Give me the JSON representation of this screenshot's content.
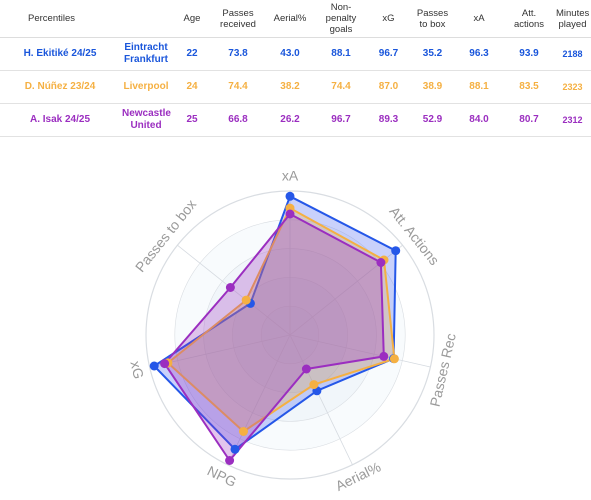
{
  "table": {
    "columns": [
      "Percentiles",
      "Age",
      "Passes received",
      "Aerial%",
      "Non-penalty goals",
      "xG",
      "Passes to box",
      "xA",
      "Att. actions",
      "Minutes played"
    ],
    "remove_label": "x",
    "rows": [
      {
        "player": "H. Ekitiké 24/25",
        "team": "Eintracht Frankfurt",
        "color": "#1a56db",
        "values": [
          "22",
          "73.8",
          "43.0",
          "88.1",
          "96.7",
          "35.2",
          "96.3",
          "93.9",
          "2188"
        ]
      },
      {
        "player": "D. Núñez 23/24",
        "team": "Liverpool",
        "color": "#f5b042",
        "values": [
          "24",
          "74.4",
          "38.2",
          "74.4",
          "87.0",
          "38.9",
          "88.1",
          "83.5",
          "2323"
        ]
      },
      {
        "player": "A. Isak 24/25",
        "team": "Newcastle United",
        "color": "#9b2ec0",
        "values": [
          "25",
          "66.8",
          "26.2",
          "96.7",
          "89.3",
          "52.9",
          "84.0",
          "80.7",
          "2312"
        ]
      }
    ]
  },
  "chart_data": {
    "type": "radar",
    "axes": [
      "xA",
      "Att. Actions",
      "Passes Rec",
      "Aerial%",
      "NPG",
      "xG",
      "Passes to box"
    ],
    "rlim": [
      0,
      100
    ],
    "grid": true,
    "series": [
      {
        "name": "H. Ekitiké 24/25",
        "color": "#2557e8",
        "fill": "rgba(60,90,240,0.28)",
        "values": [
          96.3,
          93.9,
          73.8,
          43.0,
          88.1,
          96.7,
          35.2
        ]
      },
      {
        "name": "D. Núñez 23/24",
        "color": "#f5b042",
        "fill": "rgba(245,176,66,0.28)",
        "values": [
          88.1,
          83.5,
          74.4,
          38.2,
          74.4,
          87.0,
          38.9
        ]
      },
      {
        "name": "A. Isak 24/25",
        "color": "#9b2ec0",
        "fill": "rgba(155,46,192,0.28)",
        "values": [
          84.0,
          80.7,
          66.8,
          26.2,
          96.7,
          89.3,
          52.9
        ]
      }
    ]
  }
}
